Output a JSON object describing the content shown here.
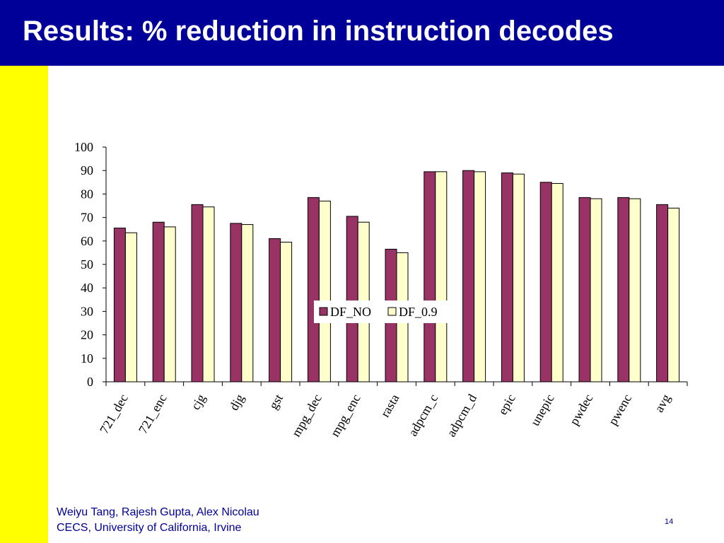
{
  "slide": {
    "title": "Results: % reduction in instruction decodes",
    "footer_line1": "Weiyu Tang, Rajesh Gupta, Alex Nicolau",
    "footer_line2": "CECS, University of California, Irvine",
    "page_number": "14"
  },
  "colors": {
    "title_bar": "#000099",
    "side_bar": "#ffff00",
    "series_1": "#993366",
    "series_2": "#ffffcc"
  },
  "chart_data": {
    "type": "bar",
    "categories": [
      "721_dec",
      "721_enc",
      "cjg",
      "djg",
      "gst",
      "mpg_dec",
      "mpg_enc",
      "rasta",
      "adpcm_c",
      "adpcm_d",
      "epic",
      "unepic",
      "pwdec",
      "pwenc",
      "avg"
    ],
    "series": [
      {
        "name": "DF_NO",
        "values": [
          65.5,
          68,
          75.5,
          67.5,
          61,
          78.5,
          70.5,
          56.5,
          89.5,
          90,
          89,
          85,
          78.5,
          78.5,
          75.5
        ]
      },
      {
        "name": "DF_0.9",
        "values": [
          63.5,
          66,
          74.5,
          67,
          59.5,
          77,
          68,
          55,
          89.5,
          89.5,
          88.5,
          84.5,
          78,
          78,
          74
        ]
      }
    ],
    "yticks": [
      0,
      10,
      20,
      30,
      40,
      50,
      60,
      70,
      80,
      90,
      100
    ],
    "ylim": [
      0,
      100
    ],
    "legend_position": "center-right"
  }
}
